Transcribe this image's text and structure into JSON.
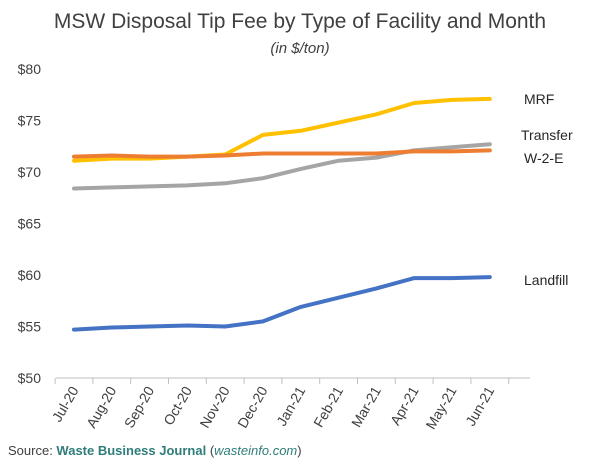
{
  "chart_data": {
    "type": "line",
    "title": "MSW Disposal Tip Fee by Type of Facility and Month",
    "subtitle": "(in $/ton)",
    "categories": [
      "Jul-20",
      "Aug-20",
      "Sep-20",
      "Oct-20",
      "Nov-20",
      "Dec-20",
      "Jan-21",
      "Feb-21",
      "Mar-21",
      "Apr-21",
      "May-21",
      "Jun-21"
    ],
    "y_ticks": [
      "$50",
      "$55",
      "$60",
      "$65",
      "$70",
      "$75",
      "$80"
    ],
    "ylim": [
      50,
      80
    ],
    "grid": false,
    "legend": "direct labels at right end of lines",
    "series": [
      {
        "name": "MRF",
        "color": "#FFC000",
        "values": [
          71.1,
          71.3,
          71.3,
          71.5,
          71.7,
          73.6,
          74.0,
          74.8,
          75.6,
          76.7,
          77.0,
          77.1
        ]
      },
      {
        "name": "Transfer",
        "color": "#A5A5A5",
        "values": [
          68.4,
          68.5,
          68.6,
          68.7,
          68.9,
          69.4,
          70.3,
          71.1,
          71.4,
          72.1,
          72.4,
          72.7
        ]
      },
      {
        "name": "W-2-E",
        "color": "#ED7D31",
        "values": [
          71.5,
          71.6,
          71.5,
          71.5,
          71.6,
          71.8,
          71.8,
          71.8,
          71.8,
          72.0,
          72.0,
          72.1
        ]
      },
      {
        "name": "Landfill",
        "color": "#4472C4",
        "values": [
          54.7,
          54.9,
          55.0,
          55.1,
          55.0,
          55.5,
          56.9,
          57.8,
          58.7,
          59.7,
          59.7,
          59.8
        ]
      }
    ]
  },
  "source": {
    "prefix": "Source: ",
    "org": "Waste Business Journal",
    "site_open": " (",
    "site": "wasteinfo.com",
    "site_close": ")"
  }
}
